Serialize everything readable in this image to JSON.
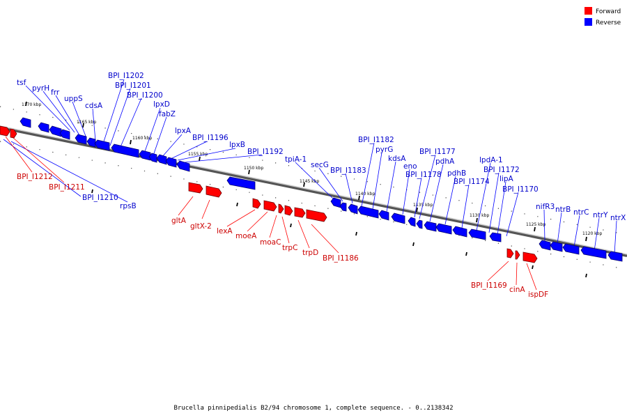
{
  "legend": {
    "forward": {
      "label": "Forward",
      "color": "#ff0000"
    },
    "reverse": {
      "label": "Reverse",
      "color": "#0000ff"
    }
  },
  "caption": "Brucella pinnipedialis B2/94 chromosome 1, complete sequence. - 0..2138342",
  "ticks": [
    "1170 kbp",
    "1165 kbp",
    "1160 kbp",
    "1155 kbp",
    "1150 kbp",
    "1145 kbp",
    "1140 kbp",
    "1135 kbp",
    "1130 kbp",
    "1125 kbp",
    "1120 kbp"
  ],
  "reverse_genes": [
    "tsf",
    "pyrH",
    "frr",
    "uppS",
    "cdsA",
    "BPI_I1202",
    "BPI_I1201",
    "BPI_I1200",
    "lpxD",
    "fabZ",
    "lpxA",
    "BPI_I1196",
    "lpxB",
    "BPI_I1192",
    "BPI_I1210",
    "rpsB",
    "tpiA-1",
    "secG",
    "BPI_I1183",
    "BPI_I1182",
    "pyrG",
    "kdsA",
    "eno",
    "BPI_I1178",
    "BPI_I1177",
    "pdhA",
    "pdhB",
    "BPI_I1174",
    "lpdA-1",
    "BPI_I1172",
    "lipA",
    "BPI_I1170",
    "nifR3",
    "ntrB",
    "ntrC",
    "ntrY",
    "ntrX"
  ],
  "forward_genes": [
    "BPI_I1212",
    "BPI_I1211",
    "gltA",
    "gltX-2",
    "lexA",
    "moeA",
    "moaC",
    "trpC",
    "trpD",
    "BPI_I1186",
    "BPI_I1169",
    "cinA",
    "ispDF"
  ]
}
